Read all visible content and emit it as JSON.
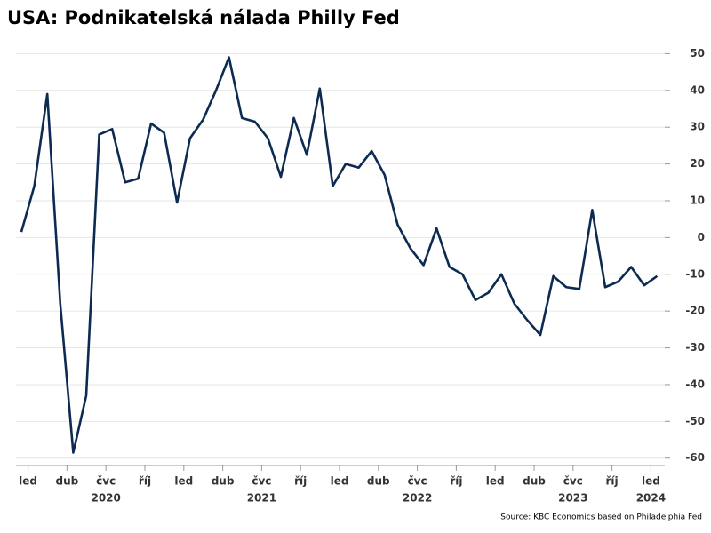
{
  "chart_data": {
    "type": "line",
    "title": "USA: Podnikatelská nálada Philly Fed",
    "source": "Source: KBC Economics based on Philadelphia Fed",
    "categories": [
      null,
      "led",
      null,
      null,
      "dub",
      null,
      null,
      "čvc",
      null,
      null,
      "říj",
      null,
      null,
      "led",
      null,
      null,
      "dub",
      null,
      null,
      "čvc",
      null,
      null,
      "říj",
      null,
      null,
      "led",
      null,
      null,
      "dub",
      null,
      null,
      "čvc",
      null,
      null,
      "říj",
      null,
      null,
      "led",
      null,
      null,
      "dub",
      null,
      null,
      "čvc",
      null,
      null,
      "říj",
      null,
      null,
      "led"
    ],
    "years": [
      "2020",
      "2021",
      "2022",
      "2023",
      "2024"
    ],
    "series": [
      {
        "name": "Philly Fed",
        "color": "#0d2b52",
        "values": [
          1.5,
          14,
          39,
          -18,
          -58.5,
          -43,
          28,
          29.5,
          15,
          16,
          31,
          28.5,
          9.5,
          27,
          32,
          40,
          49,
          32.5,
          31.5,
          27,
          16.5,
          32.5,
          22.5,
          40.5,
          14,
          20,
          19,
          23.5,
          17,
          3.5,
          -3,
          -7.5,
          2.5,
          -8,
          -10,
          -17,
          -15,
          -10,
          -18,
          -22.5,
          -26.5,
          -10.5,
          -13.5,
          -14,
          7.5,
          -13.5,
          -12,
          -8,
          -13,
          -10.5
        ]
      }
    ],
    "ylim": [
      -62,
      53
    ],
    "yticks": [
      -60,
      -50,
      -40,
      -30,
      -20,
      -10,
      0,
      10,
      20,
      30,
      40,
      50
    ],
    "grid": true
  }
}
